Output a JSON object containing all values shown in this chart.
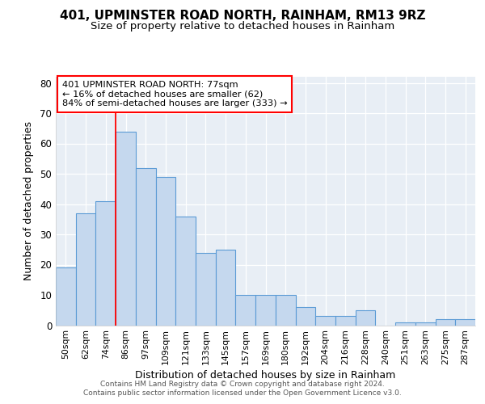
{
  "title1": "401, UPMINSTER ROAD NORTH, RAINHAM, RM13 9RZ",
  "title2": "Size of property relative to detached houses in Rainham",
  "xlabel": "Distribution of detached houses by size in Rainham",
  "ylabel": "Number of detached properties",
  "bar_labels": [
    "50sqm",
    "62sqm",
    "74sqm",
    "86sqm",
    "97sqm",
    "109sqm",
    "121sqm",
    "133sqm",
    "145sqm",
    "157sqm",
    "169sqm",
    "180sqm",
    "192sqm",
    "204sqm",
    "216sqm",
    "228sqm",
    "240sqm",
    "251sqm",
    "263sqm",
    "275sqm",
    "287sqm"
  ],
  "bar_heights": [
    19,
    37,
    41,
    64,
    52,
    49,
    36,
    24,
    25,
    10,
    10,
    10,
    6,
    3,
    3,
    5,
    0,
    1,
    1,
    2,
    2
  ],
  "bar_color": "#c5d8ee",
  "bar_edge_color": "#5b9bd5",
  "ylim": [
    0,
    82
  ],
  "yticks": [
    0,
    10,
    20,
    30,
    40,
    50,
    60,
    70,
    80
  ],
  "red_line_x": 2.5,
  "annotation_line1": "401 UPMINSTER ROAD NORTH: 77sqm",
  "annotation_line2": "← 16% of detached houses are smaller (62)",
  "annotation_line3": "84% of semi-detached houses are larger (333) →",
  "footnote1": "Contains HM Land Registry data © Crown copyright and database right 2024.",
  "footnote2": "Contains public sector information licensed under the Open Government Licence v3.0.",
  "fig_bg_color": "#ffffff",
  "plot_bg_color": "#e8eef5",
  "grid_color": "#ffffff",
  "title1_fontsize": 11,
  "title2_fontsize": 9.5
}
